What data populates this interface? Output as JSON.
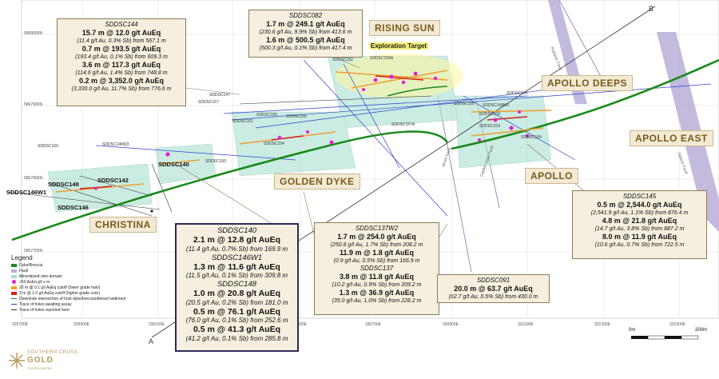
{
  "grid": {
    "northings": [
      "5868000N",
      "5867900N",
      "5867800N",
      "5867700N"
    ],
    "eastings": [
      "329700E",
      "329900E",
      "330100E",
      "330500E",
      "330700E",
      "330900E",
      "331100E",
      "331300E",
      "331500E"
    ]
  },
  "sections": {
    "a": "A",
    "b": "B"
  },
  "areas": {
    "rising_sun": "RISING SUN",
    "apollo_deeps": "APOLLO DEEPS",
    "apollo_east": "APOLLO EAST",
    "apollo": "APOLLO",
    "golden_dyke": "GOLDEN DYKE",
    "christina": "CHRISTINA"
  },
  "exploration_target": "Exploration Target",
  "faults": {
    "rubbish": "Rubbish Fault",
    "jewel": "Jewel Fault",
    "golden_gate": "Golden Gate Fault",
    "gibson": "Gibson Fault"
  },
  "holes_bold": [
    "SDDSC148",
    "SDDSC142",
    "SDDSC140",
    "SDDSC146W1",
    "SDDSC146"
  ],
  "holes_small": {
    "h152": "SDDSC152",
    "h155a": "SDDSC155A",
    "h147": "SDDSC147",
    "h157": "SDDSC157",
    "h161": "SDDSC161",
    "h155": "SDDSC155",
    "h156": "SDDSC156",
    "h154": "SDDSC154",
    "h160": "SDDSC160",
    "h146w3": "SDDSC146W3",
    "h150": "SDDSC150",
    "h157a": "SDDSC157A",
    "h163": "SDDSC163",
    "h158": "SDDSC158",
    "h149w1": "SDDSC149W1",
    "h164": "SDDSC164",
    "h159": "SDDSC159",
    "h153": "SDDSC153"
  },
  "boxes": {
    "b144": {
      "hole": "SDDSC144",
      "lines": [
        {
          "i": "15.7 m @ 12.0 g/t AuEq",
          "d": "(11.4 g/t Au, 0.3% Sb) from 567.1 m"
        },
        {
          "i": "0.7 m @ 193.5 g/t AuEq",
          "d": "(193.4 g/t Au, 0.1% Sb) from 609.3 m"
        },
        {
          "i": "3.6 m @ 117.3 g/t AuEq",
          "d": "(114.6 g/t Au, 1.4% Sb) from 748.8 m"
        },
        {
          "i": "0.2 m @ 3,352.0 g/t AuEq",
          "d": "(3,330.0 g/t Au, 11.7% Sb) from 776.6 m"
        }
      ]
    },
    "b082": {
      "hole": "SDDSC082",
      "lines": [
        {
          "i": "1.7 m @ 249.1 g/t AuEq",
          "d": "(230.6 g/t Au, 9.9% Sb) from 413.6 m"
        },
        {
          "i": "1.6 m @ 500.5 g/t AuEq",
          "d": "(500.3 g/t Au, 0.1% Sb) from 417.4 m"
        }
      ]
    },
    "b145": {
      "hole": "SDDSC145",
      "lines": [
        {
          "i": "0.5 m @ 2,544.0 g/t AuEq",
          "d": "(2,541.9 g/t Au, 1.1% Sb) from 876.4 m"
        },
        {
          "i": "4.8 m @ 21.8 g/t AuEq",
          "d": "(14.7 g/t Au, 3.8% Sb) from 887.2 m"
        },
        {
          "i": "8.0 m @ 11.9 g/t AuEq",
          "d": "(10.6 g/t Au, 0.7% Sb) from 722.5 m"
        }
      ]
    },
    "b137w2": {
      "hole": "SDDSC137W2",
      "lines": [
        {
          "i": "1.7 m @ 254.0 g/t AuEq",
          "d": "(250.8 g/t Au, 1.7% Sb) from 208.2 m"
        },
        {
          "i": "11.9 m @ 1.8 g/t AuEq",
          "d": "(0.9 g/t Au, 0.5% Sb) from 166.9 m"
        }
      ]
    },
    "b137": {
      "hole": "SDDSC137",
      "lines": [
        {
          "i": "3.8 m @ 11.8 g/t AuEq",
          "d": "(10.2 g/t Au, 0.9% Sb) from 209.2 m"
        },
        {
          "i": "1.3 m @ 36.9 g/t AuEq",
          "d": "(35.0 g/t Au, 1.0% Sb) from 228.2 m"
        }
      ]
    },
    "b091": {
      "hole": "SDDSC091",
      "lines": [
        {
          "i": "20.0 m @ 63.7 g/t AuEq",
          "d": "(62.7 g/t Au, 0.5% Sb) from 430.0 m"
        }
      ]
    },
    "b140": {
      "hole": "SDDSC140",
      "lines": [
        {
          "i": "2.1 m @ 12.8 g/t AuEq",
          "d": "(11.4 g/t Au, 0.7% Sb) from 169.9 m"
        }
      ]
    },
    "b146w1": {
      "hole": "SDDSC146W1",
      "lines": [
        {
          "i": "1.3 m @ 11.6 g/t AuEq",
          "d": "(11.5 g/t Au, 0.1% Sb) from 309.8 m"
        }
      ]
    },
    "b148": {
      "hole": "SDDSC148",
      "lines": [
        {
          "i": "1.0 m @ 20.8 g/t AuEq",
          "d": "(20.5 g/t Au, 0.2% Sb) from 181.0 m"
        },
        {
          "i": "0.5 m @ 76.1 g/t AuEq",
          "d": "(76.0 g/t Au, 0.1% Sb) from 252.6 m"
        },
        {
          "i": "0.5 m @ 41.3 g/t AuEq",
          "d": "(41.2 g/t Au, 0.1% Sb) from 285.8 m"
        }
      ]
    }
  },
  "legend": {
    "title": "Legend",
    "items": [
      {
        "label": "Dyke/Breccia",
        "color": "#1a8a1a",
        "kind": "box"
      },
      {
        "label": "Fault",
        "color": "#b8aed8",
        "kind": "box"
      },
      {
        "label": "Mineralised vein domain",
        "color": "#a8e0d0",
        "kind": "box"
      },
      {
        "label": ">50 AuEq g/t x m",
        "color": "#e020d0",
        "kind": "dot"
      },
      {
        "label": "20 m @ 0.1 g/t AuEq cutoff (lower grade halo)",
        "color": "#f0a030",
        "kind": "box"
      },
      {
        "label": "2 m @ 1.0 g/t AuEq cutoff (higher grade core)",
        "color": "#d02020",
        "kind": "box"
      },
      {
        "label": "Downhole intersection of host dyke/breccia/altered sediment",
        "color": "#1a8a1a",
        "kind": "line"
      },
      {
        "label": "Trace of holes awaiting assay",
        "color": "#3040d0",
        "kind": "line"
      },
      {
        "label": "Trace of holes reported here",
        "color": "#333333",
        "kind": "line"
      }
    ]
  },
  "scale": {
    "start": "0m",
    "end": "200m"
  },
  "logo": {
    "line1": "SOUTHERN CROSS",
    "line2": "GOLD",
    "line3": "CONSOLIDATED"
  }
}
